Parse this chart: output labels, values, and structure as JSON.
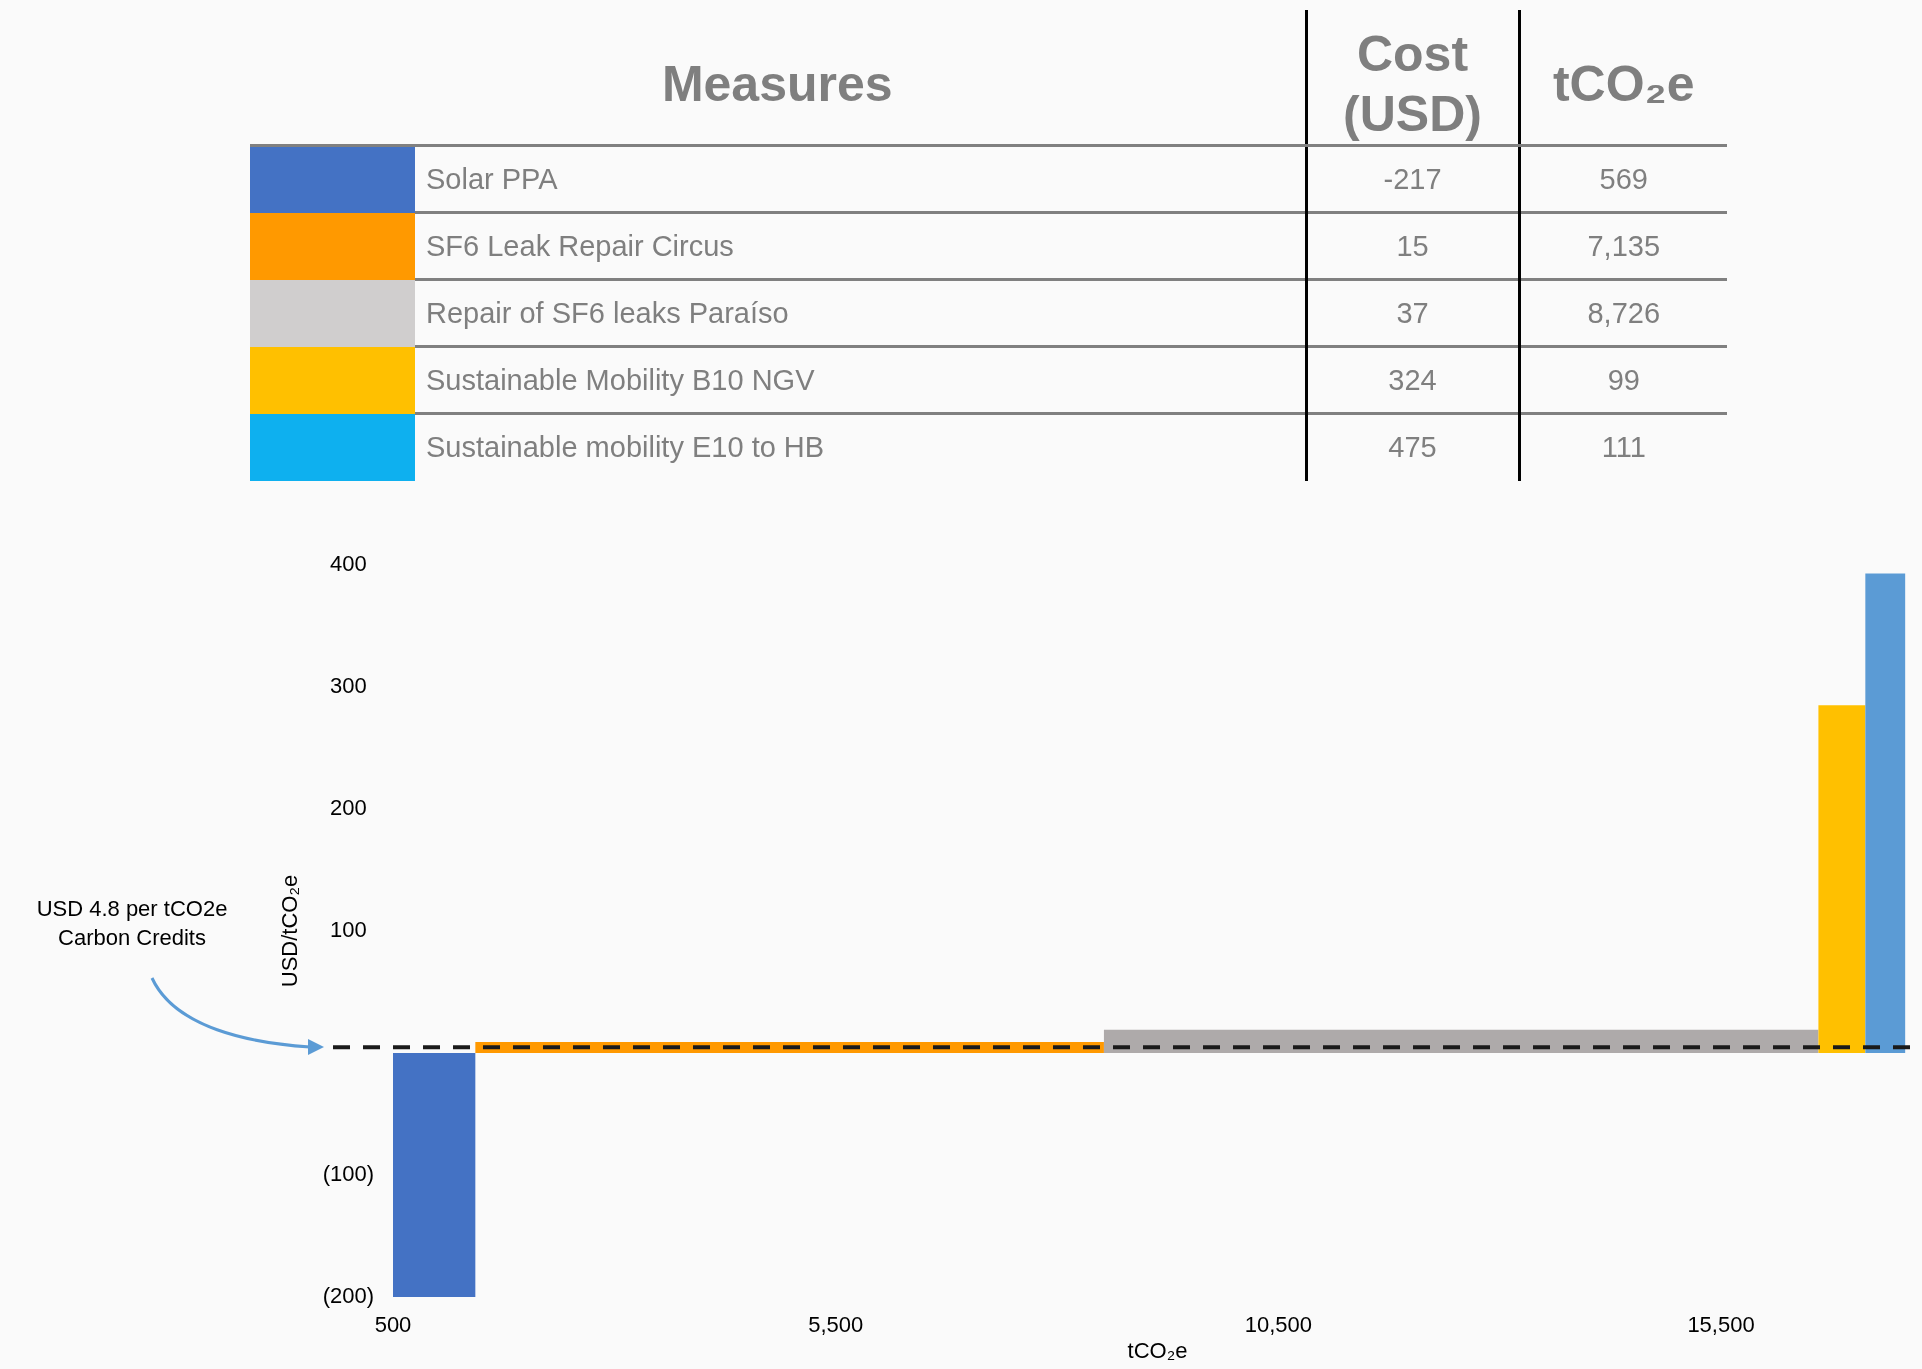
{
  "chart_data": [
    {
      "type": "other",
      "title": "Measures",
      "categories": [
        "Solar PPA",
        "SF6 Leak Repair Circus",
        "Repair of SF6 leaks Paraíso",
        "Sustainable Mobility B10 NGV",
        "Sustainable mobility E10 to HB"
      ],
      "colors": [
        "#4472c4",
        "#ff9900",
        "#d0cece",
        "#ffc000",
        "#0eb0ef"
      ],
      "series": [
        {
          "name": "Cost (USD)",
          "values": [
            -217,
            15,
            37,
            324,
            475
          ],
          "value_labels": [
            "-217",
            "15",
            "37",
            "324",
            "475"
          ]
        },
        {
          "name": "tCO₂e",
          "values": [
            569,
            7135,
            8726,
            99,
            111
          ],
          "value_labels": [
            "569",
            "7,135",
            "8,726",
            "99",
            "111"
          ]
        }
      ]
    },
    {
      "type": "histogram",
      "xlabel": "tCO₂e",
      "ylabel": "USD/tCO₂e",
      "bins": [
        500,
        1430,
        8530,
        16600,
        17130,
        17580
      ],
      "values": [
        -200,
        9,
        19,
        285,
        393
      ],
      "colors": [
        "#4472c4",
        "#ff9900",
        "#aeaaaa",
        "#ffc000",
        "#5b9bd5"
      ],
      "xlim": [
        500,
        17770
      ],
      "xticks": [
        500,
        {
          "value": 5500,
          "label": "5,500"
        },
        {
          "value": 10500,
          "label": "10,500"
        },
        {
          "value": 15500,
          "label": "15,500"
        }
      ],
      "ylim": [
        -200,
        400
      ],
      "yticks": [
        {
          "value": -200,
          "label": "(200)"
        },
        {
          "value": -100,
          "label": "(100)"
        },
        100,
        200,
        300,
        400
      ],
      "ref_lines": [
        {
          "axis": "y",
          "value": 4.8,
          "label": "USD 4.8 per tCO2e Carbon Credits",
          "color": "#1a1a1a",
          "line_style": "dashed"
        }
      ]
    }
  ]
}
